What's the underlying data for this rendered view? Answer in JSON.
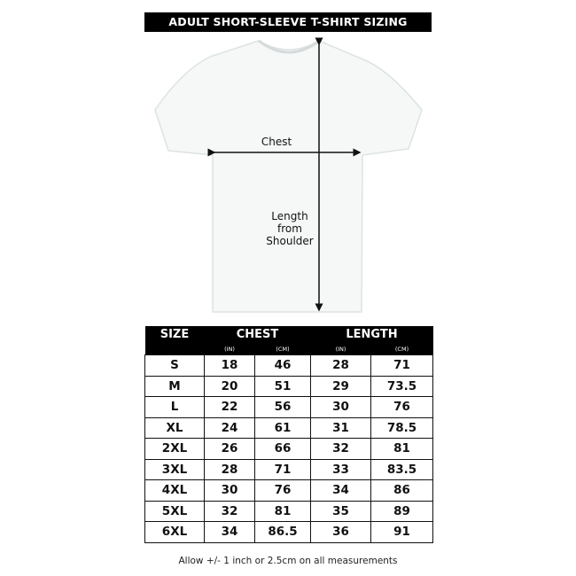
{
  "title": "ADULT SHORT-SLEEVE T-SHIRT SIZING",
  "diagram": {
    "chest_label": "Chest",
    "length_label": [
      "Length",
      "from",
      "Shoulder"
    ]
  },
  "table": {
    "headers": {
      "size": "SIZE",
      "chest": "CHEST",
      "length": "LENGTH"
    },
    "units": [
      "(IN)",
      "(CM)",
      "(IN)",
      "(CM)"
    ],
    "rows": [
      [
        "S",
        "18",
        "46",
        "28",
        "71"
      ],
      [
        "M",
        "20",
        "51",
        "29",
        "73.5"
      ],
      [
        "L",
        "22",
        "56",
        "30",
        "76"
      ],
      [
        "XL",
        "24",
        "61",
        "31",
        "78.5"
      ],
      [
        "2XL",
        "26",
        "66",
        "32",
        "81"
      ],
      [
        "3XL",
        "28",
        "71",
        "33",
        "83.5"
      ],
      [
        "4XL",
        "30",
        "76",
        "34",
        "86"
      ],
      [
        "5XL",
        "32",
        "81",
        "35",
        "89"
      ],
      [
        "6XL",
        "34",
        "86.5",
        "36",
        "91"
      ]
    ]
  },
  "footnote": "Allow +/- 1 inch or 2.5cm on all measurements"
}
